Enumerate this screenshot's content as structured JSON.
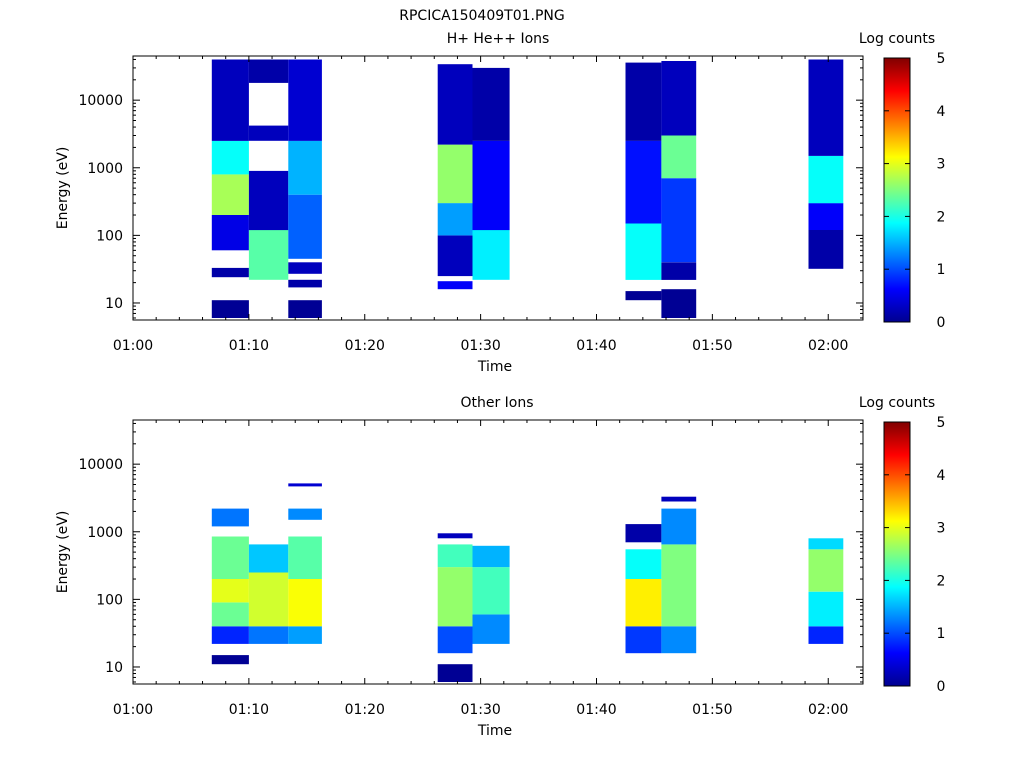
{
  "figure_title": "RPCICA150409T01.PNG",
  "colorscale": {
    "label": "Log counts",
    "ticks": [
      "0",
      "1",
      "2",
      "3",
      "4",
      "5"
    ]
  },
  "chart_data": [
    {
      "type": "heatmap",
      "title": "H+ He++ Ions",
      "xlabel": "Time",
      "ylabel": "Energy (eV)",
      "x_ticks": [
        "01:00",
        "01:10",
        "01:20",
        "01:30",
        "01:40",
        "01:50",
        "02:00"
      ],
      "y_ticks": [
        "10",
        "100",
        "1000",
        "10000"
      ],
      "x_range_minutes": [
        0,
        63
      ],
      "y_range_eV": [
        5.6,
        45000
      ],
      "y_scale": "log",
      "z_range": [
        0,
        5
      ],
      "columns": [
        {
          "t_start": 6.8,
          "t_end": 10.0,
          "segments": [
            {
              "e_low": 6,
              "e_high": 11,
              "v": 0.1
            },
            {
              "e_low": 24,
              "e_high": 33,
              "v": 0.2
            },
            {
              "e_low": 60,
              "e_high": 200,
              "v": 0.5
            },
            {
              "e_low": 200,
              "e_high": 800,
              "v": 2.7
            },
            {
              "e_low": 800,
              "e_high": 2500,
              "v": 1.9
            },
            {
              "e_low": 2500,
              "e_high": 40000,
              "v": 0.3
            }
          ]
        },
        {
          "t_start": 10.0,
          "t_end": 13.4,
          "segments": [
            {
              "e_low": 22,
              "e_high": 120,
              "v": 2.3
            },
            {
              "e_low": 120,
              "e_high": 900,
              "v": 0.3
            },
            {
              "e_low": 2500,
              "e_high": 4200,
              "v": 0.3
            },
            {
              "e_low": 18000,
              "e_high": 40000,
              "v": 0.2
            }
          ]
        },
        {
          "t_start": 13.4,
          "t_end": 16.3,
          "segments": [
            {
              "e_low": 6,
              "e_high": 11,
              "v": 0.1
            },
            {
              "e_low": 17,
              "e_high": 22,
              "v": 0.2
            },
            {
              "e_low": 27,
              "e_high": 40,
              "v": 0.3
            },
            {
              "e_low": 45,
              "e_high": 400,
              "v": 1.1
            },
            {
              "e_low": 400,
              "e_high": 2500,
              "v": 1.5
            },
            {
              "e_low": 2500,
              "e_high": 40000,
              "v": 0.4
            }
          ]
        },
        {
          "t_start": 26.3,
          "t_end": 29.3,
          "segments": [
            {
              "e_low": 16,
              "e_high": 21,
              "v": 0.6
            },
            {
              "e_low": 25,
              "e_high": 100,
              "v": 0.3
            },
            {
              "e_low": 100,
              "e_high": 300,
              "v": 1.4
            },
            {
              "e_low": 300,
              "e_high": 2200,
              "v": 2.6
            },
            {
              "e_low": 2200,
              "e_high": 34000,
              "v": 0.3
            }
          ]
        },
        {
          "t_start": 29.3,
          "t_end": 32.5,
          "segments": [
            {
              "e_low": 22,
              "e_high": 120,
              "v": 1.8
            },
            {
              "e_low": 120,
              "e_high": 2500,
              "v": 0.6
            },
            {
              "e_low": 2500,
              "e_high": 30000,
              "v": 0.2
            }
          ]
        },
        {
          "t_start": 42.5,
          "t_end": 45.6,
          "segments": [
            {
              "e_low": 11,
              "e_high": 15,
              "v": 0.1
            },
            {
              "e_low": 22,
              "e_high": 150,
              "v": 1.9
            },
            {
              "e_low": 150,
              "e_high": 2500,
              "v": 0.7
            },
            {
              "e_low": 2500,
              "e_high": 36000,
              "v": 0.2
            }
          ]
        },
        {
          "t_start": 45.6,
          "t_end": 48.6,
          "segments": [
            {
              "e_low": 6,
              "e_high": 16,
              "v": 0.1
            },
            {
              "e_low": 22,
              "e_high": 40,
              "v": 0.2
            },
            {
              "e_low": 40,
              "e_high": 700,
              "v": 0.9
            },
            {
              "e_low": 700,
              "e_high": 3000,
              "v": 2.4
            },
            {
              "e_low": 3000,
              "e_high": 38000,
              "v": 0.3
            }
          ]
        },
        {
          "t_start": 58.3,
          "t_end": 61.3,
          "segments": [
            {
              "e_low": 32,
              "e_high": 120,
              "v": 0.2
            },
            {
              "e_low": 120,
              "e_high": 300,
              "v": 0.6
            },
            {
              "e_low": 300,
              "e_high": 1500,
              "v": 1.9
            },
            {
              "e_low": 1500,
              "e_high": 40000,
              "v": 0.3
            }
          ]
        }
      ]
    },
    {
      "type": "heatmap",
      "title": "Other Ions",
      "xlabel": "Time",
      "ylabel": "Energy (eV)",
      "x_ticks": [
        "01:00",
        "01:10",
        "01:20",
        "01:30",
        "01:40",
        "01:50",
        "02:00"
      ],
      "y_ticks": [
        "10",
        "100",
        "1000",
        "10000"
      ],
      "x_range_minutes": [
        0,
        63
      ],
      "y_range_eV": [
        5.6,
        45000
      ],
      "y_scale": "log",
      "z_range": [
        0,
        5
      ],
      "columns": [
        {
          "t_start": 6.8,
          "t_end": 10.0,
          "segments": [
            {
              "e_low": 11,
              "e_high": 15,
              "v": 0.1
            },
            {
              "e_low": 22,
              "e_high": 40,
              "v": 0.8
            },
            {
              "e_low": 40,
              "e_high": 90,
              "v": 2.4
            },
            {
              "e_low": 90,
              "e_high": 200,
              "v": 3.0
            },
            {
              "e_low": 200,
              "e_high": 850,
              "v": 2.4
            },
            {
              "e_low": 1200,
              "e_high": 2200,
              "v": 1.2
            }
          ]
        },
        {
          "t_start": 10.0,
          "t_end": 13.4,
          "segments": [
            {
              "e_low": 22,
              "e_high": 40,
              "v": 1.2
            },
            {
              "e_low": 40,
              "e_high": 250,
              "v": 2.9
            },
            {
              "e_low": 250,
              "e_high": 650,
              "v": 1.6
            }
          ]
        },
        {
          "t_start": 13.4,
          "t_end": 16.3,
          "segments": [
            {
              "e_low": 22,
              "e_high": 40,
              "v": 1.4
            },
            {
              "e_low": 40,
              "e_high": 200,
              "v": 3.1
            },
            {
              "e_low": 200,
              "e_high": 850,
              "v": 2.3
            },
            {
              "e_low": 1500,
              "e_high": 2200,
              "v": 1.3
            },
            {
              "e_low": 4700,
              "e_high": 5200,
              "v": 0.4
            }
          ]
        },
        {
          "t_start": 26.3,
          "t_end": 29.3,
          "segments": [
            {
              "e_low": 6,
              "e_high": 11,
              "v": 0.1
            },
            {
              "e_low": 16,
              "e_high": 40,
              "v": 1.0
            },
            {
              "e_low": 40,
              "e_high": 300,
              "v": 2.6
            },
            {
              "e_low": 300,
              "e_high": 650,
              "v": 2.2
            },
            {
              "e_low": 800,
              "e_high": 950,
              "v": 0.3
            }
          ]
        },
        {
          "t_start": 29.3,
          "t_end": 32.5,
          "segments": [
            {
              "e_low": 22,
              "e_high": 60,
              "v": 1.3
            },
            {
              "e_low": 60,
              "e_high": 300,
              "v": 2.2
            },
            {
              "e_low": 300,
              "e_high": 620,
              "v": 1.5
            }
          ]
        },
        {
          "t_start": 42.5,
          "t_end": 45.6,
          "segments": [
            {
              "e_low": 16,
              "e_high": 40,
              "v": 0.9
            },
            {
              "e_low": 40,
              "e_high": 200,
              "v": 3.2
            },
            {
              "e_low": 200,
              "e_high": 550,
              "v": 1.9
            },
            {
              "e_low": 700,
              "e_high": 1300,
              "v": 0.2
            }
          ]
        },
        {
          "t_start": 45.6,
          "t_end": 48.6,
          "segments": [
            {
              "e_low": 16,
              "e_high": 40,
              "v": 1.3
            },
            {
              "e_low": 40,
              "e_high": 650,
              "v": 2.5
            },
            {
              "e_low": 650,
              "e_high": 2200,
              "v": 1.3
            },
            {
              "e_low": 2800,
              "e_high": 3300,
              "v": 0.3
            }
          ]
        },
        {
          "t_start": 58.3,
          "t_end": 61.3,
          "segments": [
            {
              "e_low": 22,
              "e_high": 40,
              "v": 0.8
            },
            {
              "e_low": 40,
              "e_high": 130,
              "v": 1.8
            },
            {
              "e_low": 130,
              "e_high": 550,
              "v": 2.6
            },
            {
              "e_low": 550,
              "e_high": 800,
              "v": 1.7
            }
          ]
        }
      ]
    }
  ]
}
